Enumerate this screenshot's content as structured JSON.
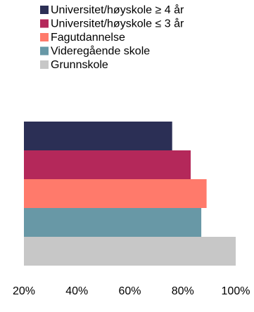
{
  "chart_data": {
    "type": "bar",
    "orientation": "horizontal",
    "title": "",
    "xlabel": "",
    "ylabel": "",
    "xlim": [
      20,
      100
    ],
    "xticks": [
      20,
      40,
      60,
      80,
      100
    ],
    "tick_labels": [
      "20%",
      "40%",
      "60%",
      "80%",
      "100%"
    ],
    "grid": false,
    "legend_position": "top-left",
    "series": [
      {
        "name": "Universitet/høyskole ≥ 4 år",
        "value": 76,
        "color": "#2b2f55"
      },
      {
        "name": "Universitet/høyskole ≤ 3 år",
        "value": 83,
        "color": "#b4285a"
      },
      {
        "name": "Fagutdannelse",
        "value": 89,
        "color": "#ff7a6b"
      },
      {
        "name": "Videregående skole",
        "value": 87,
        "color": "#6898a6"
      },
      {
        "name": "Grunnskole",
        "value": 100,
        "color": "#c7c7c7"
      }
    ]
  }
}
